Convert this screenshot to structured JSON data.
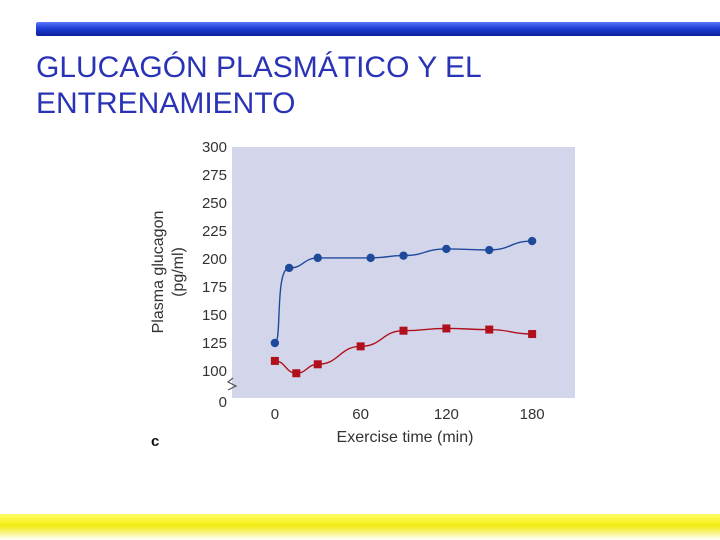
{
  "slide": {
    "title_line1": "GLUCAGÓN PLASMÁTICO Y EL",
    "title_line2": "ENTRENAMIENTO",
    "panel_letter": "c",
    "colors": {
      "top_bar": "#1f3fd6",
      "title": "#2a33b5",
      "bottom_bar": "#f2ea12"
    }
  },
  "chart_data": {
    "type": "line",
    "title": "",
    "xlabel": "Exercise time (min)",
    "ylabel_line1": "Plasma glucagon",
    "ylabel_line2": "(pg/ml)",
    "xlim": [
      -30,
      210
    ],
    "ylim": [
      100,
      300
    ],
    "axis_break": "between 0 and 100 on y-axis",
    "x_ticks": [
      0,
      60,
      120,
      180
    ],
    "x_tick_labels": [
      "0",
      "60",
      "120",
      "180"
    ],
    "y_ticks": [
      100,
      125,
      150,
      175,
      200,
      225,
      250,
      275,
      300
    ],
    "y_tick_labels": [
      "100",
      "125",
      "150",
      "175",
      "200",
      "225",
      "250",
      "275",
      "300"
    ],
    "y_zero_label": "0",
    "grid": false,
    "background_color": "#d3d6ea",
    "series": [
      {
        "marker": "circle",
        "color": "#1f4a9c",
        "x": [
          0,
          10,
          30,
          67,
          90,
          120,
          150,
          180
        ],
        "values": [
          125,
          192,
          201,
          201,
          203,
          209,
          208,
          216
        ]
      },
      {
        "marker": "square",
        "color": "#b0101c",
        "x": [
          0,
          15,
          30,
          60,
          90,
          120,
          150,
          180
        ],
        "values": [
          109,
          98,
          106,
          122,
          136,
          138,
          137,
          133
        ]
      }
    ]
  }
}
